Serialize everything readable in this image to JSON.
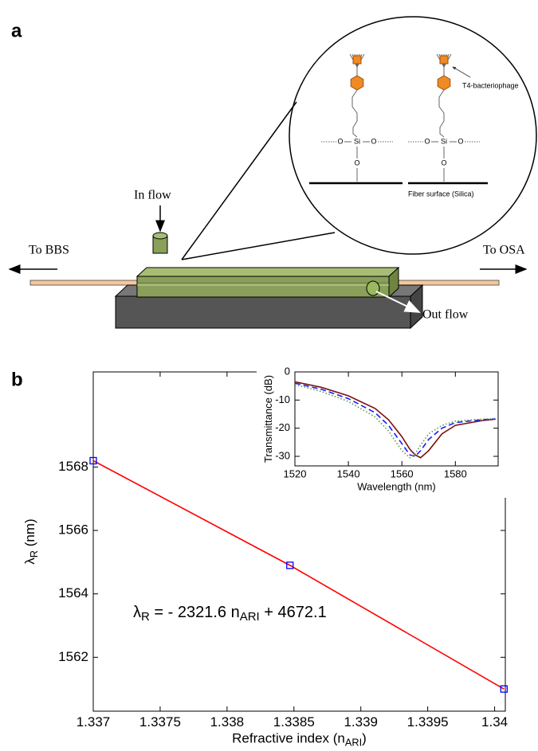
{
  "panel_b": "b",
  "diagram": {
    "panel": "a",
    "in_flow": "In flow",
    "to_bbs": "To BBS",
    "to_osa": "To OSA",
    "out_flow": "Out flow",
    "phage": "T4-bacteriophage",
    "surface": "Fiber surface (Silica)",
    "oxygen": "O",
    "silicon": "Si"
  },
  "chart_data": [
    {
      "type": "line",
      "x_label": "Refractive index (n",
      "x_label_sub": "ARI",
      "x_label_end": ")",
      "y_label": "λ",
      "y_label_sub": "R",
      "y_label_end": " (nm)",
      "annotation": {
        "symbol": "λ",
        "symbol_sub": "R",
        "text": " = - 2321.6 n",
        "text_sub": "ARI",
        "text_end": " + 4672.1"
      },
      "x": [
        1.337,
        1.33847,
        1.34007
      ],
      "series": [
        {
          "color": "#ff0000",
          "marker": "square",
          "marker_color": "#0000ff",
          "style": "solid",
          "values": [
            1568.2,
            1564.9,
            1561.0
          ]
        }
      ],
      "xlim": [
        1.337,
        1.34008
      ],
      "ylim": [
        1560.3,
        1571.0
      ],
      "xticks": [
        1.337,
        1.3375,
        1.338,
        1.3385,
        1.339,
        1.3395,
        1.34
      ],
      "yticks": [
        1562,
        1564,
        1566,
        1568
      ],
      "grid": false
    },
    {
      "type": "line",
      "x_label": "Wavelength (nm)",
      "y_label": "Transmittance (dB)",
      "x": [
        1520,
        1530,
        1540,
        1550,
        1555,
        1560,
        1563,
        1565,
        1567,
        1570,
        1575,
        1580,
        1590,
        1595
      ],
      "series": [
        {
          "color": "#7a1010",
          "style": "solid",
          "values": [
            -3.5,
            -5.5,
            -8.5,
            -13,
            -17,
            -23,
            -27.5,
            -29.5,
            -30.5,
            -28,
            -22,
            -19,
            -17.3,
            -16.8
          ]
        },
        {
          "color": "#1a1aff",
          "style": "dashed",
          "values": [
            -4,
            -6.2,
            -9.5,
            -14.5,
            -19,
            -25.5,
            -29.5,
            -30,
            -28,
            -24,
            -20,
            -18,
            -17,
            -16.7
          ]
        },
        {
          "color": "#5a9a50",
          "style": "dotted",
          "values": [
            -4.5,
            -7,
            -10.5,
            -16,
            -21,
            -28,
            -30.5,
            -29,
            -26,
            -22,
            -19,
            -17.5,
            -16.8,
            -16.6
          ]
        }
      ],
      "xlim": [
        1520,
        1596
      ],
      "ylim": [
        -33.4,
        0
      ],
      "xticks": [
        1520,
        1540,
        1560,
        1580
      ],
      "yticks": [
        0,
        -10,
        -20,
        -30
      ],
      "grid": false
    }
  ]
}
